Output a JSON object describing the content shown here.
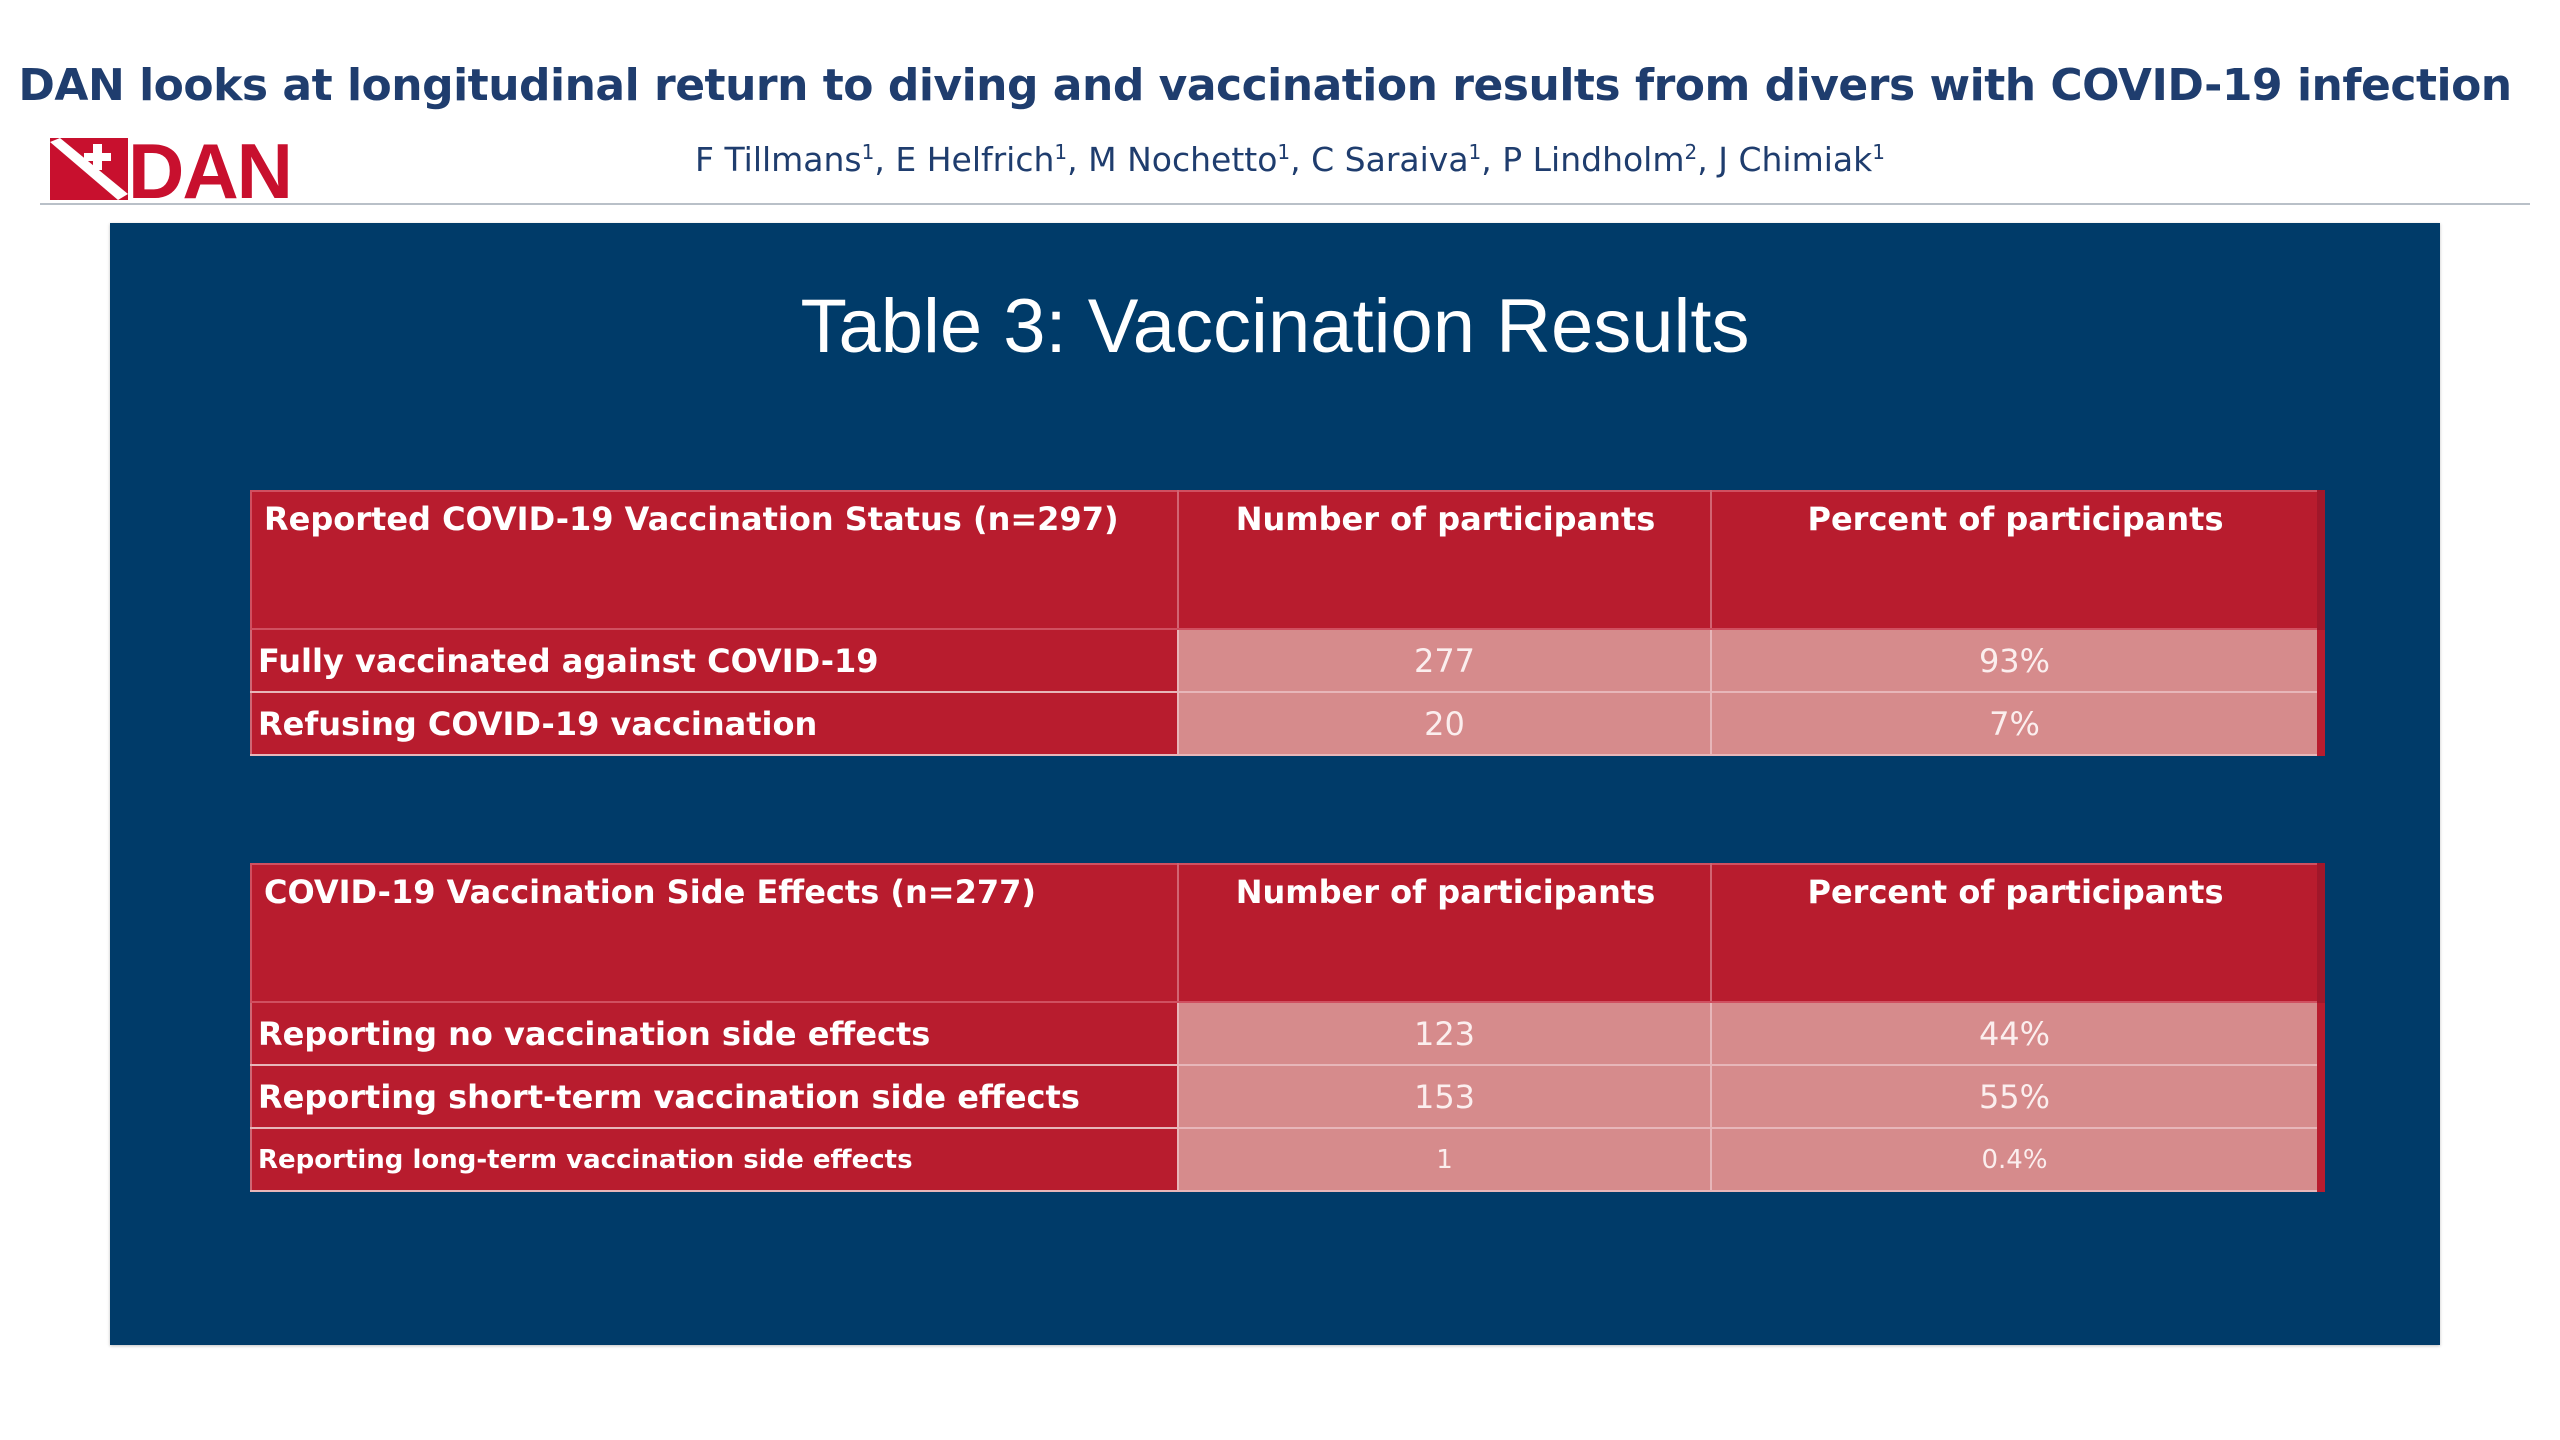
{
  "header": {
    "title": "DAN looks at longitudinal return to diving and vaccination results from divers with COVID-19 infection",
    "logo_text": "DAN",
    "authors": [
      {
        "name": "F Tillmans",
        "aff": "1",
        "sep": ", "
      },
      {
        "name": "E Helfrich",
        "aff": "1",
        "sep": ", "
      },
      {
        "name": "M Nochetto",
        "aff": "1",
        "sep": ", "
      },
      {
        "name": "C Saraiva",
        "aff": "1",
        "sep": ", "
      },
      {
        "name": "P Lindholm",
        "aff": "2",
        "sep": ", "
      },
      {
        "name": "J Chimiak",
        "aff": "1",
        "sep": ""
      }
    ]
  },
  "colors": {
    "title_blue": "#1f3d6e",
    "panel_navy": "#003b69",
    "header_red": "#b81c2e",
    "value_pink": "#d68b8c",
    "logo_red": "#c8102e"
  },
  "panel": {
    "title": "Table 3: Vaccination Results"
  },
  "table1": {
    "headers": [
      "Reported COVID-19 Vaccination Status (n=297)",
      "Number of participants",
      "Percent of participants"
    ],
    "rows": [
      [
        "Fully vaccinated against COVID-19",
        "277",
        "93%"
      ],
      [
        "Refusing COVID-19 vaccination",
        "20",
        "7%"
      ]
    ]
  },
  "table2": {
    "headers": [
      "COVID-19 Vaccination Side Effects (n=277)",
      "Number of participants",
      "Percent of participants"
    ],
    "rows": [
      [
        "Reporting no vaccination side effects",
        "123",
        "44%"
      ],
      [
        "Reporting short-term vaccination side effects",
        "153",
        "55%"
      ],
      [
        "Reporting long-term vaccination side effects",
        "1",
        "0.4%"
      ]
    ]
  }
}
